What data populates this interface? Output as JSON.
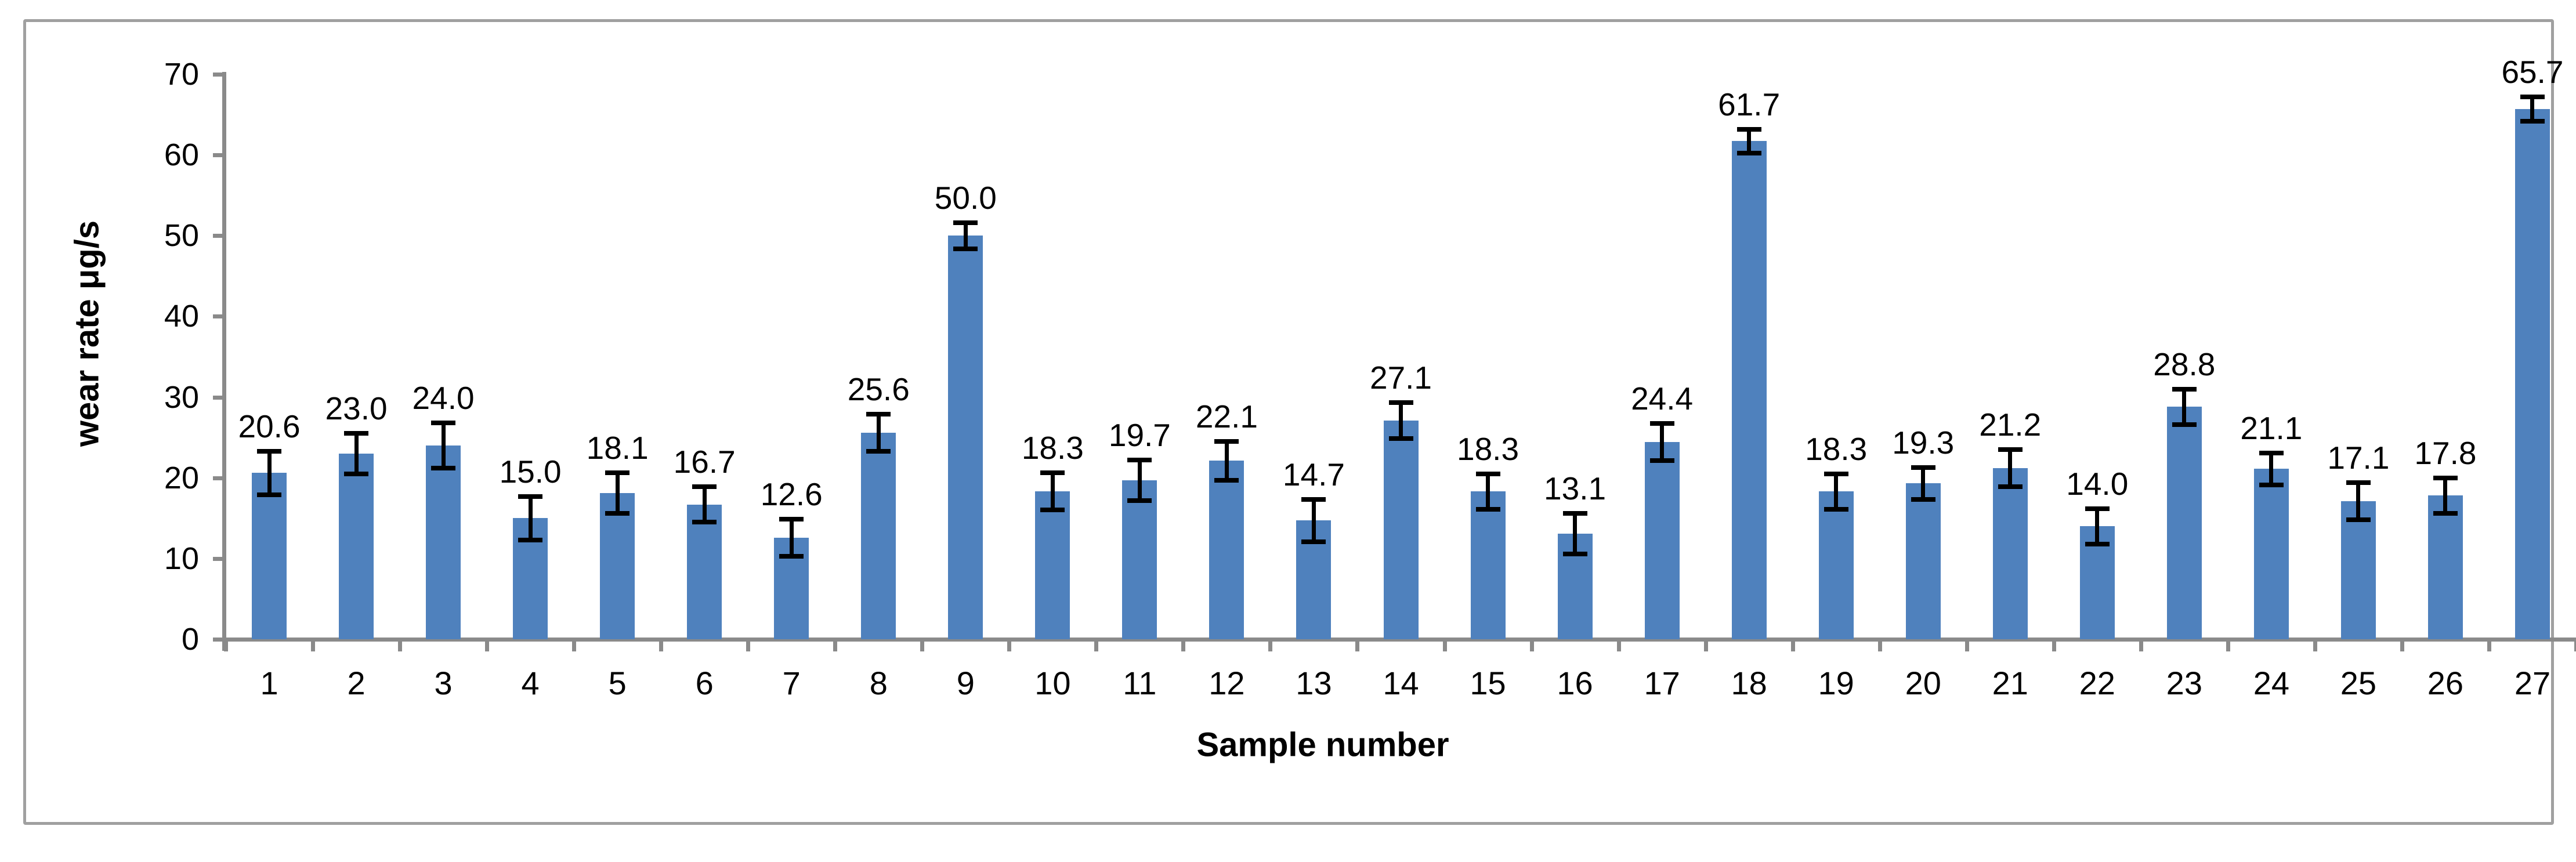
{
  "chart_data": {
    "type": "bar",
    "title": "",
    "xlabel": "Sample number",
    "ylabel": "wear rate μg/s",
    "categories": [
      "1",
      "2",
      "3",
      "4",
      "5",
      "6",
      "7",
      "8",
      "9",
      "10",
      "11",
      "12",
      "13",
      "14",
      "15",
      "16",
      "17",
      "18",
      "19",
      "20",
      "21",
      "22",
      "23",
      "24",
      "25",
      "26",
      "27"
    ],
    "values": [
      20.6,
      23.0,
      24.0,
      15.0,
      18.1,
      16.7,
      12.6,
      25.6,
      50.0,
      18.3,
      19.7,
      22.1,
      14.7,
      27.1,
      18.3,
      13.1,
      24.4,
      61.7,
      18.3,
      19.3,
      21.2,
      14.0,
      28.8,
      21.1,
      17.1,
      17.8,
      65.7
    ],
    "data_labels": [
      "20.6",
      "23.0",
      "24.0",
      "15.0",
      "18.1",
      "16.7",
      "12.6",
      "25.6",
      "50.0",
      "18.3",
      "19.7",
      "22.1",
      "14.7",
      "27.1",
      "18.3",
      "13.1",
      "24.4",
      "61.7",
      "18.3",
      "19.3",
      "21.2",
      "14.0",
      "28.8",
      "21.1",
      "17.1",
      "17.8",
      "65.7"
    ],
    "errors_plus_minus": [
      2.7,
      2.5,
      2.8,
      2.7,
      2.5,
      2.2,
      2.3,
      2.3,
      1.6,
      2.3,
      2.5,
      2.4,
      2.6,
      2.2,
      2.2,
      2.5,
      2.3,
      1.5,
      2.2,
      2.0,
      2.3,
      2.2,
      2.2,
      2.0,
      2.3,
      2.2,
      1.5
    ],
    "ylim": [
      0,
      70
    ],
    "yticks": [
      0,
      10,
      20,
      30,
      40,
      50,
      60,
      70
    ],
    "grid": "off",
    "legend": "none",
    "bar_color": "#4f81bd",
    "error_bar_color": "#000000",
    "axis_color": "#8a8a8a",
    "frame_border_color": "#a0a0a0",
    "text_color": "#000000"
  }
}
